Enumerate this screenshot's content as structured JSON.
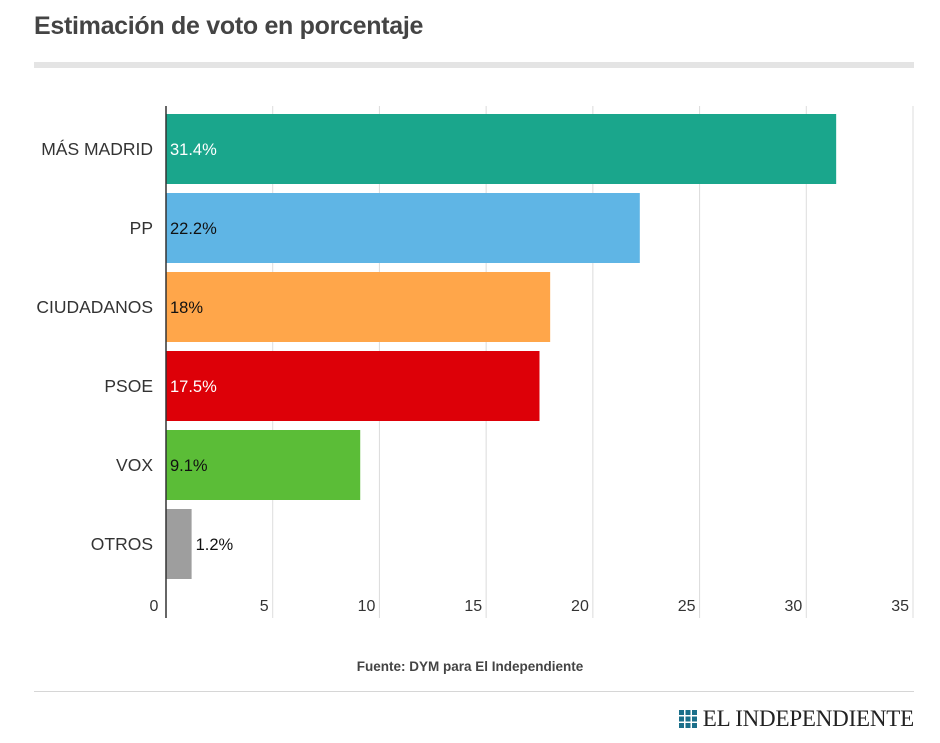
{
  "chart_data": {
    "type": "bar",
    "orientation": "horizontal",
    "title": "Estimación de voto en porcentaje",
    "categories": [
      "MÁS MADRID",
      "PP",
      "CIUDADANOS",
      "PSOE",
      "VOX",
      "OTROS"
    ],
    "values": [
      31.4,
      22.2,
      18,
      17.5,
      9.1,
      1.2
    ],
    "data_labels": [
      "31.4%",
      "22.2%",
      "18%",
      "17.5%",
      "9.1%",
      "1.2%"
    ],
    "colors": [
      "#1aa68c",
      "#5fb5e5",
      "#ffa64a",
      "#dd0008",
      "#5bbd37",
      "#9e9e9e"
    ],
    "label_colors": [
      "#ffffff",
      "#111111",
      "#111111",
      "#ffffff",
      "#111111",
      "#111111"
    ],
    "x_ticks": [
      0,
      5,
      10,
      15,
      20,
      25,
      30,
      35
    ],
    "xlim": [
      0,
      35
    ],
    "grid": true,
    "xlabel": "",
    "ylabel": ""
  },
  "footer": {
    "source": "Fuente: DYM para El Independiente",
    "brand": "EL INDEPENDIENTE"
  }
}
